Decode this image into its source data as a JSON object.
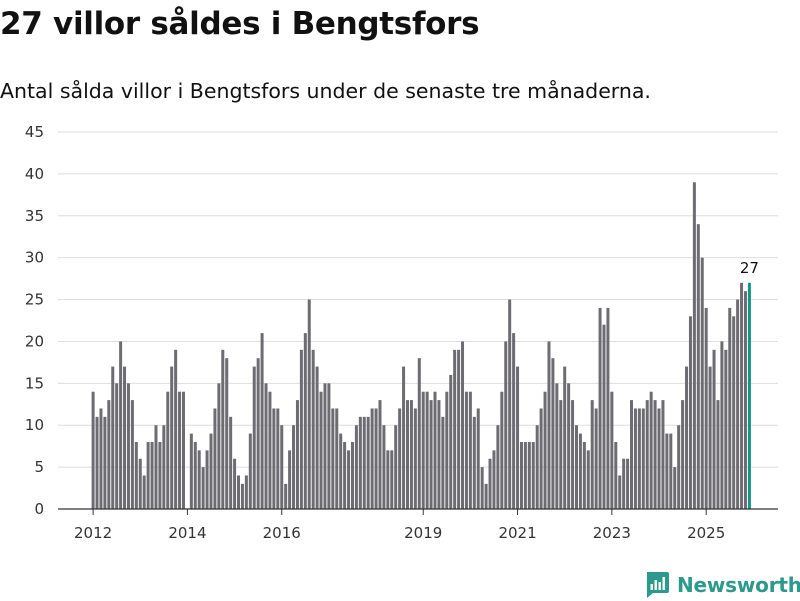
{
  "header": {
    "title": "27 villor såldes i Bengtsfors",
    "subtitle": "Antal sålda villor i Bengtsfors under de senaste tre månaderna."
  },
  "brand": {
    "name": "Newsworthy",
    "color": "#2b9a8c",
    "icon": "newsworthy-logo-icon"
  },
  "chart_data": {
    "type": "bar",
    "title": "27 villor såldes i Bengtsfors",
    "subtitle": "Antal sålda villor i Bengtsfors under de senaste tre månaderna.",
    "xlabel": "",
    "ylabel": "",
    "ylim": [
      0,
      45
    ],
    "yticks": [
      0,
      5,
      10,
      15,
      20,
      25,
      30,
      35,
      40,
      45
    ],
    "grid": true,
    "legend": "none",
    "bar_color": "#6d6c73",
    "highlight_color": "#14948a",
    "first_period": "2012-01",
    "xtick_labels": [
      {
        "label": "2012",
        "index": 0
      },
      {
        "label": "2014",
        "index": 24
      },
      {
        "label": "2016",
        "index": 48
      },
      {
        "label": "2019",
        "index": 84
      },
      {
        "label": "2021",
        "index": 108
      },
      {
        "label": "2023",
        "index": 132
      },
      {
        "label": "2025",
        "index": 156
      }
    ],
    "values": [
      14,
      11,
      12,
      11,
      13,
      17,
      15,
      20,
      17,
      15,
      13,
      8,
      6,
      4,
      8,
      8,
      10,
      8,
      10,
      14,
      17,
      19,
      14,
      14,
      0,
      9,
      8,
      7,
      5,
      7,
      9,
      12,
      15,
      19,
      18,
      11,
      6,
      4,
      3,
      4,
      9,
      17,
      18,
      21,
      15,
      14,
      12,
      12,
      10,
      3,
      7,
      10,
      13,
      19,
      21,
      25,
      19,
      17,
      14,
      15,
      15,
      12,
      12,
      9,
      8,
      7,
      8,
      10,
      11,
      11,
      11,
      12,
      12,
      13,
      10,
      7,
      7,
      10,
      12,
      17,
      13,
      13,
      12,
      18,
      14,
      14,
      13,
      14,
      13,
      11,
      14,
      16,
      19,
      19,
      20,
      14,
      14,
      11,
      12,
      5,
      3,
      6,
      7,
      10,
      14,
      20,
      25,
      21,
      17,
      8,
      8,
      8,
      8,
      10,
      12,
      14,
      20,
      18,
      15,
      13,
      17,
      15,
      13,
      10,
      9,
      8,
      7,
      13,
      12,
      24,
      22,
      24,
      14,
      8,
      4,
      6,
      6,
      13,
      12,
      12,
      12,
      13,
      14,
      13,
      12,
      13,
      9,
      9,
      5,
      10,
      13,
      17,
      23,
      39,
      34,
      30,
      24,
      17,
      19,
      13,
      20,
      19,
      24,
      23,
      25,
      27,
      26,
      27
    ],
    "highlight_index": 167,
    "data_labels": [
      {
        "index": 167,
        "text": "27"
      }
    ]
  }
}
